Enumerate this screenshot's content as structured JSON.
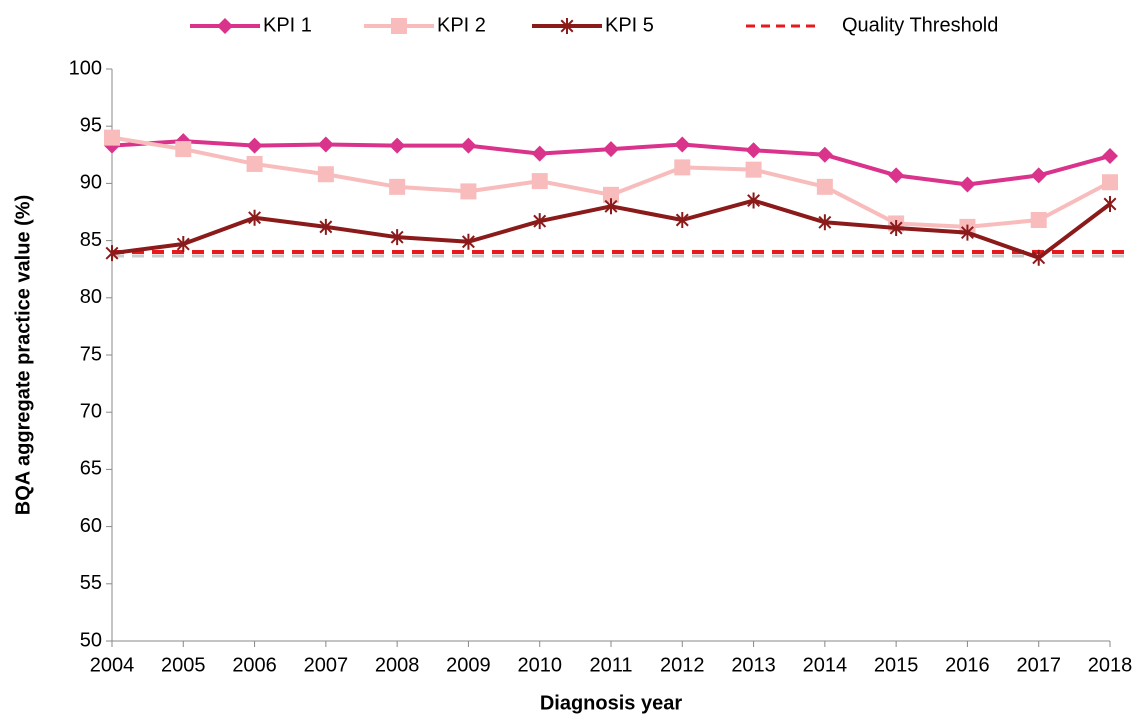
{
  "chart_data": {
    "type": "line",
    "x_label": "Diagnosis year",
    "y_label": "BQA aggregate practice value (%)",
    "categories": [
      "2004",
      "2005",
      "2006",
      "2007",
      "2008",
      "2009",
      "2010",
      "2011",
      "2012",
      "2013",
      "2014",
      "2015",
      "2016",
      "2017",
      "2018"
    ],
    "series": [
      {
        "name": "KPI 1",
        "color": "#d9338b",
        "marker": "diamond",
        "values": [
          93.3,
          93.7,
          93.3,
          93.4,
          93.3,
          93.3,
          92.6,
          93.0,
          93.4,
          92.9,
          92.5,
          90.7,
          89.9,
          90.7,
          92.4
        ]
      },
      {
        "name": "KPI 2",
        "color": "#f8bcbc",
        "marker": "square",
        "values": [
          94.0,
          93.0,
          91.7,
          90.8,
          89.7,
          89.3,
          90.2,
          89.0,
          91.4,
          91.2,
          89.7,
          86.5,
          86.2,
          86.8,
          90.1
        ]
      },
      {
        "name": "KPI 5",
        "color": "#8b1a1a",
        "marker": "star",
        "values": [
          83.9,
          84.7,
          87.0,
          86.2,
          85.3,
          84.9,
          86.7,
          88.0,
          86.8,
          88.5,
          86.6,
          86.1,
          85.7,
          83.5,
          88.2
        ]
      }
    ],
    "threshold": {
      "name": "Quality Threshold",
      "value": 84,
      "color": "#e8191c"
    },
    "ylim": [
      50,
      100
    ],
    "yticks": [
      50,
      55,
      60,
      65,
      70,
      75,
      80,
      85,
      90,
      95,
      100
    ],
    "legend": "top"
  }
}
